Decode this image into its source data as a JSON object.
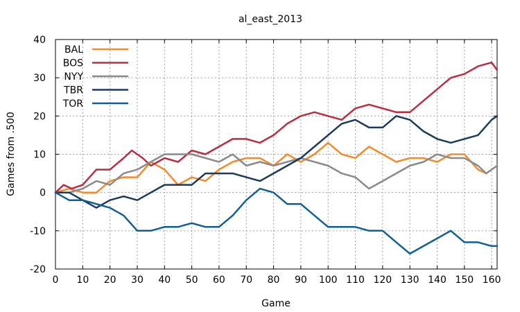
{
  "chart_data": {
    "type": "line",
    "title": "al_east_2013",
    "xlabel": "Game",
    "ylabel": "Games from .500",
    "xlim": [
      0,
      162
    ],
    "ylim": [
      -20,
      40
    ],
    "xticks": [
      0,
      10,
      20,
      30,
      40,
      50,
      60,
      70,
      80,
      90,
      100,
      110,
      120,
      130,
      140,
      150,
      160
    ],
    "yticks": [
      -20,
      -10,
      0,
      10,
      20,
      30,
      40
    ],
    "grid": true,
    "legend_position": "top-left",
    "series": [
      {
        "name": "BAL",
        "color": "#f58a2c",
        "points": [
          [
            0,
            0
          ],
          [
            5,
            1
          ],
          [
            10,
            0
          ],
          [
            15,
            0
          ],
          [
            20,
            3
          ],
          [
            25,
            4
          ],
          [
            30,
            4
          ],
          [
            35,
            8
          ],
          [
            40,
            6
          ],
          [
            45,
            2
          ],
          [
            50,
            4
          ],
          [
            55,
            3
          ],
          [
            60,
            6
          ],
          [
            65,
            8
          ],
          [
            70,
            9
          ],
          [
            75,
            9
          ],
          [
            80,
            7
          ],
          [
            85,
            10
          ],
          [
            90,
            8
          ],
          [
            95,
            10
          ],
          [
            100,
            13
          ],
          [
            105,
            10
          ],
          [
            110,
            9
          ],
          [
            115,
            12
          ],
          [
            120,
            10
          ],
          [
            125,
            8
          ],
          [
            130,
            9
          ],
          [
            135,
            9
          ],
          [
            140,
            8
          ],
          [
            145,
            10
          ],
          [
            150,
            10
          ],
          [
            155,
            6
          ],
          [
            158,
            5
          ],
          [
            162,
            7
          ]
        ]
      },
      {
        "name": "BOS",
        "color": "#bb2d3d",
        "points": [
          [
            0,
            0
          ],
          [
            3,
            2
          ],
          [
            6,
            1
          ],
          [
            10,
            2
          ],
          [
            15,
            6
          ],
          [
            20,
            6
          ],
          [
            25,
            9
          ],
          [
            28,
            11
          ],
          [
            32,
            9
          ],
          [
            35,
            7
          ],
          [
            40,
            9
          ],
          [
            45,
            8
          ],
          [
            50,
            11
          ],
          [
            55,
            10
          ],
          [
            60,
            12
          ],
          [
            65,
            14
          ],
          [
            70,
            14
          ],
          [
            75,
            13
          ],
          [
            80,
            15
          ],
          [
            85,
            18
          ],
          [
            90,
            20
          ],
          [
            95,
            21
          ],
          [
            100,
            20
          ],
          [
            105,
            19
          ],
          [
            110,
            22
          ],
          [
            115,
            23
          ],
          [
            120,
            22
          ],
          [
            125,
            21
          ],
          [
            130,
            21
          ],
          [
            135,
            24
          ],
          [
            140,
            27
          ],
          [
            145,
            30
          ],
          [
            150,
            31
          ],
          [
            155,
            33
          ],
          [
            160,
            34
          ],
          [
            162,
            32
          ]
        ]
      },
      {
        "name": "NYY",
        "color": "#8a8a8a",
        "points": [
          [
            0,
            0
          ],
          [
            5,
            0
          ],
          [
            10,
            1
          ],
          [
            15,
            3
          ],
          [
            20,
            2
          ],
          [
            25,
            5
          ],
          [
            30,
            6
          ],
          [
            35,
            8
          ],
          [
            40,
            10
          ],
          [
            45,
            10
          ],
          [
            50,
            10
          ],
          [
            55,
            9
          ],
          [
            60,
            8
          ],
          [
            65,
            10
          ],
          [
            70,
            7
          ],
          [
            75,
            8
          ],
          [
            80,
            7
          ],
          [
            85,
            8
          ],
          [
            90,
            9
          ],
          [
            95,
            8
          ],
          [
            100,
            7
          ],
          [
            105,
            5
          ],
          [
            110,
            4
          ],
          [
            115,
            1
          ],
          [
            120,
            3
          ],
          [
            125,
            5
          ],
          [
            130,
            7
          ],
          [
            135,
            8
          ],
          [
            140,
            10
          ],
          [
            145,
            9
          ],
          [
            150,
            9
          ],
          [
            155,
            7
          ],
          [
            158,
            5
          ],
          [
            162,
            7
          ]
        ]
      },
      {
        "name": "TBR",
        "color": "#1a3a5e",
        "points": [
          [
            0,
            0
          ],
          [
            5,
            0
          ],
          [
            10,
            -2
          ],
          [
            15,
            -4
          ],
          [
            20,
            -2
          ],
          [
            25,
            -1
          ],
          [
            30,
            -2
          ],
          [
            35,
            0
          ],
          [
            40,
            2
          ],
          [
            45,
            2
          ],
          [
            50,
            2
          ],
          [
            55,
            5
          ],
          [
            60,
            5
          ],
          [
            65,
            5
          ],
          [
            70,
            4
          ],
          [
            75,
            3
          ],
          [
            80,
            5
          ],
          [
            85,
            7
          ],
          [
            90,
            9
          ],
          [
            95,
            12
          ],
          [
            100,
            15
          ],
          [
            105,
            18
          ],
          [
            110,
            19
          ],
          [
            115,
            17
          ],
          [
            120,
            17
          ],
          [
            125,
            20
          ],
          [
            130,
            19
          ],
          [
            135,
            16
          ],
          [
            140,
            14
          ],
          [
            145,
            13
          ],
          [
            150,
            14
          ],
          [
            155,
            15
          ],
          [
            160,
            19
          ],
          [
            162,
            20
          ]
        ]
      },
      {
        "name": "TOR",
        "color": "#0f5f96",
        "points": [
          [
            0,
            0
          ],
          [
            5,
            -2
          ],
          [
            10,
            -2
          ],
          [
            15,
            -3
          ],
          [
            20,
            -4
          ],
          [
            25,
            -6
          ],
          [
            30,
            -10
          ],
          [
            35,
            -10
          ],
          [
            40,
            -9
          ],
          [
            45,
            -9
          ],
          [
            50,
            -8
          ],
          [
            55,
            -9
          ],
          [
            60,
            -9
          ],
          [
            65,
            -6
          ],
          [
            70,
            -2
          ],
          [
            75,
            1
          ],
          [
            80,
            0
          ],
          [
            85,
            -3
          ],
          [
            90,
            -3
          ],
          [
            95,
            -6
          ],
          [
            100,
            -9
          ],
          [
            105,
            -9
          ],
          [
            110,
            -9
          ],
          [
            115,
            -10
          ],
          [
            120,
            -10
          ],
          [
            125,
            -13
          ],
          [
            130,
            -16
          ],
          [
            135,
            -14
          ],
          [
            140,
            -12
          ],
          [
            145,
            -10
          ],
          [
            150,
            -13
          ],
          [
            155,
            -13
          ],
          [
            160,
            -14
          ],
          [
            162,
            -14
          ]
        ]
      }
    ]
  }
}
